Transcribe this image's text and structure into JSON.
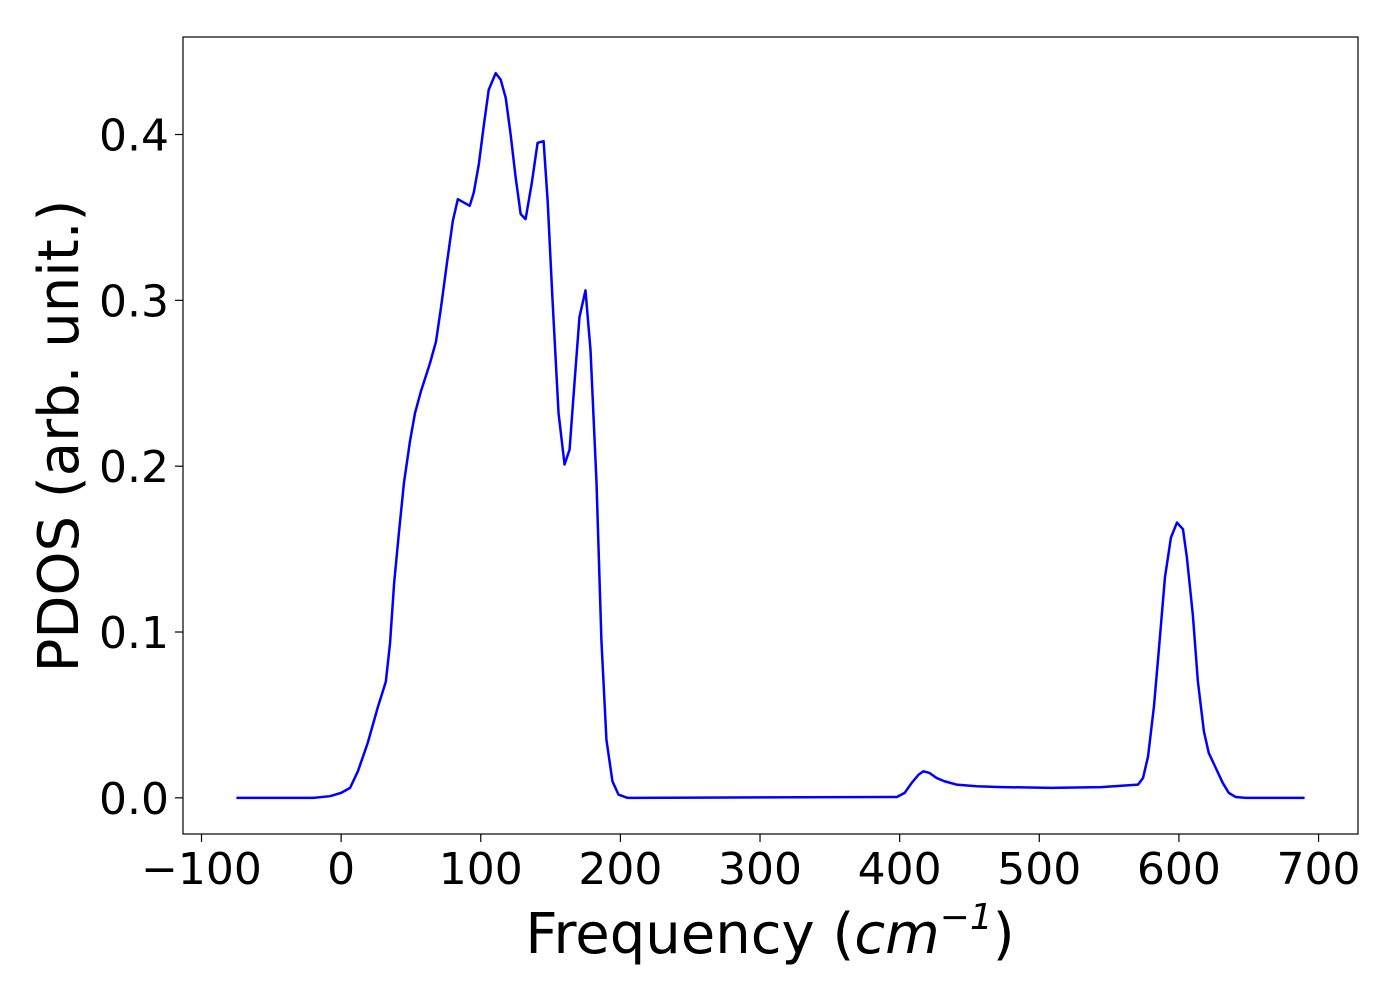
{
  "chart_data": {
    "type": "line",
    "xlabel": [
      "Frequency (",
      "cm",
      "−1",
      ")"
    ],
    "ylabel": "PDOS (arb. unit.)",
    "xlim": [
      -113.25,
      728.25
    ],
    "ylim": [
      -0.0218,
      0.4588
    ],
    "xticks": [
      {
        "value": -100,
        "label": "−100"
      },
      0,
      100,
      200,
      300,
      400,
      500,
      600,
      700
    ],
    "yticks": [
      {
        "value": 0,
        "label": "0.0"
      },
      0.1,
      0.2,
      0.3,
      0.4
    ],
    "series": [
      {
        "color": "#0000ff",
        "x": [
          -75,
          -20,
          -8,
          0,
          6.4,
          12,
          19,
          26.4,
          32,
          35,
          38,
          41.4,
          45,
          49.3,
          52.9,
          57.1,
          63.6,
          67.9,
          71.4,
          75.7,
          80,
          83.6,
          92.1,
          95,
          98.6,
          102.1,
          105.7,
          110.7,
          114.3,
          117.9,
          121.4,
          125,
          128.6,
          132.1,
          136.4,
          140.7,
          145,
          147.9,
          151.4,
          155.7,
          160,
          163.6,
          167.1,
          170.7,
          175,
          178.6,
          182.9,
          186.4,
          190,
          194.3,
          198.6,
          205,
          398,
          403.6,
          408.6,
          413.6,
          417,
          421.4,
          426.4,
          432,
          440.7,
          455,
          472.9,
          508.6,
          544.3,
          570.7,
          574.3,
          577.9,
          582.1,
          585.7,
          590,
          594.3,
          598.6,
          602.9,
          605.7,
          610,
          613.6,
          617.9,
          621.4,
          626.4,
          631.4,
          635.7,
          640.7,
          647.9,
          690
        ],
        "values": [
          0,
          0,
          0.001,
          0.003,
          0.006,
          0.016,
          0.033,
          0.055,
          0.07,
          0.093,
          0.13,
          0.16,
          0.19,
          0.215,
          0.232,
          0.245,
          0.262,
          0.275,
          0.295,
          0.322,
          0.348,
          0.361,
          0.357,
          0.365,
          0.382,
          0.405,
          0.427,
          0.437,
          0.433,
          0.422,
          0.4,
          0.374,
          0.352,
          0.349,
          0.37,
          0.395,
          0.396,
          0.36,
          0.3,
          0.232,
          0.201,
          0.21,
          0.25,
          0.29,
          0.306,
          0.27,
          0.19,
          0.095,
          0.035,
          0.01,
          0.002,
          0,
          0.0005,
          0.003,
          0.009,
          0.014,
          0.016,
          0.015,
          0.012,
          0.01,
          0.008,
          0.007,
          0.0065,
          0.006,
          0.0065,
          0.008,
          0.012,
          0.025,
          0.055,
          0.09,
          0.133,
          0.157,
          0.166,
          0.162,
          0.145,
          0.11,
          0.07,
          0.04,
          0.027,
          0.018,
          0.009,
          0.003,
          0.0005,
          0,
          0
        ]
      }
    ]
  }
}
